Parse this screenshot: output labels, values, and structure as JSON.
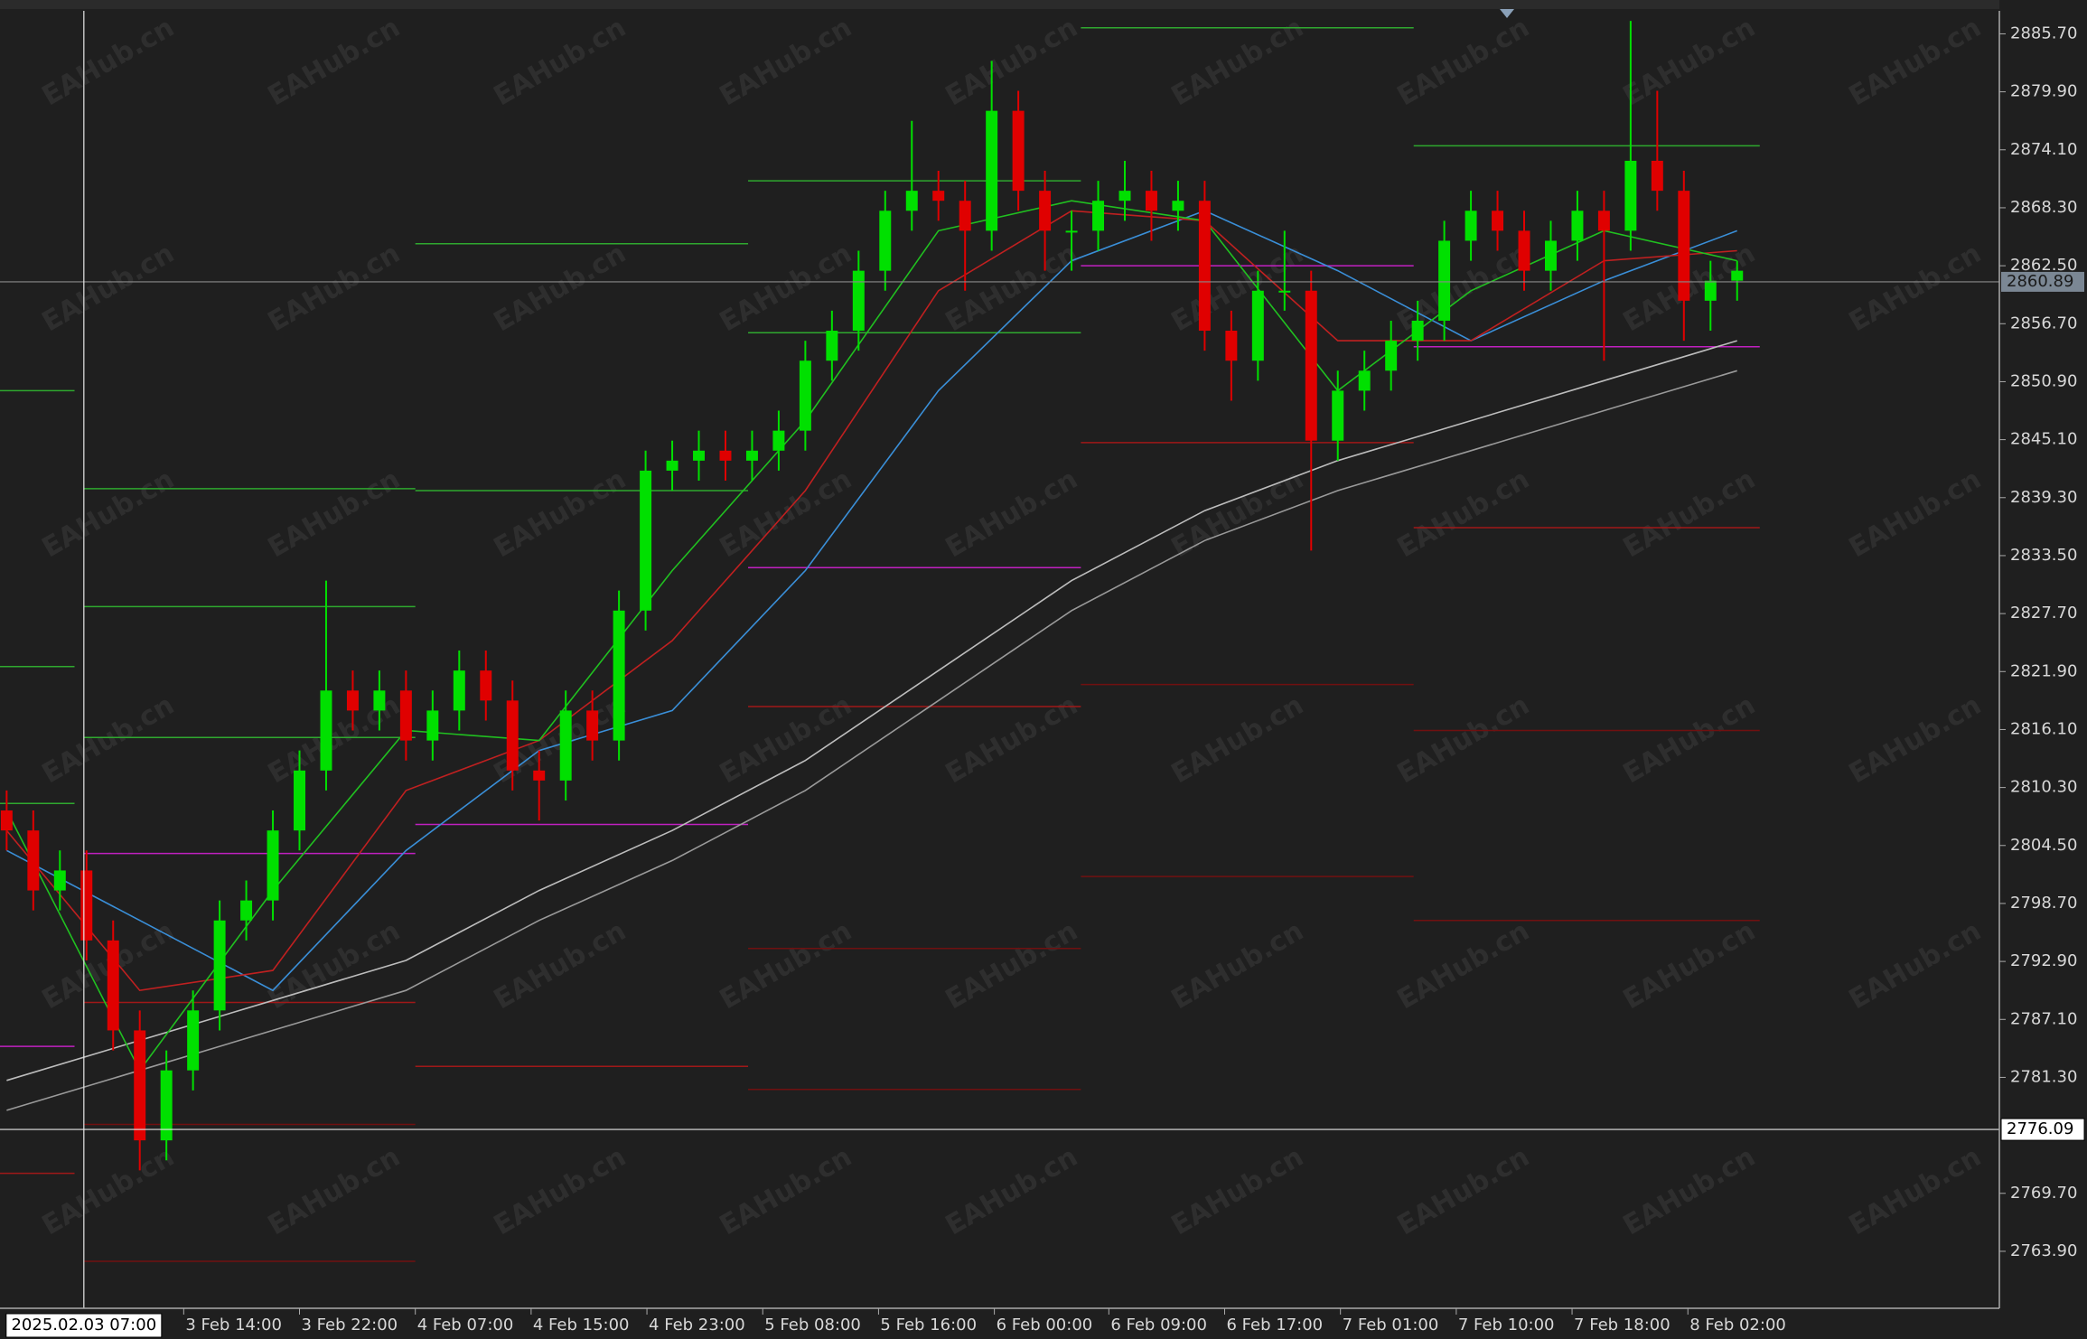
{
  "chart_data": {
    "type": "candlestick",
    "watermark": "EAHub.cn",
    "up_color": "#00e000",
    "down_color": "#e00000",
    "open": [
      2808,
      2806,
      2800,
      2802,
      2795,
      2786,
      2775,
      2782,
      2788,
      2797,
      2799,
      2806,
      2812,
      2820,
      2818,
      2820,
      2815,
      2818,
      2822,
      2819,
      2812,
      2811,
      2818,
      2815,
      2828,
      2842,
      2843,
      2844,
      2843,
      2844,
      2846,
      2853,
      2856,
      2862,
      2868,
      2870,
      2869,
      2866,
      2878,
      2870,
      2866,
      2866,
      2869,
      2870,
      2868,
      2869,
      2856,
      2853,
      2860,
      2860,
      2845,
      2850,
      2852,
      2855,
      2857,
      2865,
      2868,
      2866,
      2862,
      2865,
      2868,
      2866,
      2873,
      2870,
      2859,
      2861
    ],
    "high": [
      2810,
      2808,
      2804,
      2804,
      2797,
      2788,
      2784,
      2790,
      2799,
      2801,
      2808,
      2814,
      2831,
      2822,
      2822,
      2822,
      2820,
      2824,
      2824,
      2821,
      2814,
      2820,
      2820,
      2830,
      2844,
      2845,
      2846,
      2846,
      2846,
      2848,
      2855,
      2858,
      2864,
      2870,
      2877,
      2872,
      2871,
      2883,
      2880,
      2872,
      2868,
      2871,
      2873,
      2872,
      2871,
      2871,
      2858,
      2862,
      2866,
      2862,
      2852,
      2854,
      2857,
      2859,
      2867,
      2870,
      2870,
      2868,
      2867,
      2870,
      2870,
      2887,
      2880,
      2872,
      2863,
      2863
    ],
    "low": [
      2804,
      2798,
      2798,
      2793,
      2784,
      2772,
      2773,
      2780,
      2786,
      2795,
      2797,
      2804,
      2810,
      2816,
      2816,
      2813,
      2813,
      2816,
      2817,
      2810,
      2807,
      2809,
      2813,
      2813,
      2826,
      2840,
      2841,
      2841,
      2841,
      2842,
      2844,
      2851,
      2854,
      2860,
      2866,
      2867,
      2860,
      2864,
      2868,
      2862,
      2862,
      2864,
      2867,
      2865,
      2866,
      2854,
      2849,
      2851,
      2858,
      2834,
      2843,
      2848,
      2850,
      2853,
      2855,
      2863,
      2864,
      2860,
      2860,
      2863,
      2853,
      2864,
      2868,
      2855,
      2856,
      2859
    ],
    "close": [
      2806,
      2800,
      2802,
      2795,
      2786,
      2775,
      2782,
      2788,
      2797,
      2799,
      2806,
      2812,
      2820,
      2818,
      2820,
      2815,
      2818,
      2822,
      2819,
      2812,
      2811,
      2818,
      2815,
      2828,
      2842,
      2843,
      2844,
      2843,
      2844,
      2846,
      2853,
      2856,
      2862,
      2868,
      2870,
      2869,
      2866,
      2878,
      2870,
      2866,
      2866,
      2869,
      2870,
      2868,
      2869,
      2856,
      2853,
      2860,
      2860,
      2845,
      2850,
      2852,
      2855,
      2857,
      2865,
      2868,
      2866,
      2862,
      2865,
      2868,
      2866,
      2873,
      2870,
      2859,
      2861,
      2862
    ],
    "lines": {
      "x": [
        0,
        5,
        10,
        15,
        20,
        25,
        30,
        35,
        40,
        45,
        50,
        55,
        60,
        65
      ],
      "series": [
        {
          "color": "#bdbdbd",
          "values": [
            2781,
            2785,
            2789,
            2793,
            2800,
            2806,
            2813,
            2822,
            2831,
            2838,
            2843,
            2847,
            2851,
            2855
          ]
        },
        {
          "color": "#9a9a9a",
          "values": [
            2778,
            2782,
            2786,
            2790,
            2797,
            2803,
            2810,
            2819,
            2828,
            2835,
            2840,
            2844,
            2848,
            2852
          ]
        },
        {
          "color": "#3a8fd8",
          "values": [
            2804,
            2797,
            2790,
            2804,
            2814,
            2818,
            2832,
            2850,
            2863,
            2868,
            2862,
            2855,
            2861,
            2866
          ]
        },
        {
          "color": "#c02020",
          "values": [
            2806,
            2790,
            2792,
            2810,
            2815,
            2825,
            2840,
            2860,
            2868,
            2867,
            2855,
            2855,
            2863,
            2864
          ]
        },
        {
          "color": "#20c020",
          "values": [
            2808,
            2782,
            2800,
            2816,
            2815,
            2832,
            2847,
            2866,
            2869,
            2867,
            2850,
            2860,
            2866,
            2863
          ]
        }
      ]
    },
    "levels": [
      {
        "start": -0.25,
        "end": 2.55,
        "value": 2850,
        "color": "#2fa82f"
      },
      {
        "start": -0.25,
        "end": 2.55,
        "value": 2822.4,
        "color": "#2fa82f"
      },
      {
        "start": -0.25,
        "end": 2.55,
        "value": 2808.7,
        "color": "#2fa82f"
      },
      {
        "start": -0.25,
        "end": 2.55,
        "value": 2784.4,
        "color": "#c020c0"
      },
      {
        "start": -0.25,
        "end": 2.55,
        "value": 2771.7,
        "color": "#a01818"
      },
      {
        "start": 2.9,
        "end": 15.35,
        "value": 2840.2,
        "color": "#2fa82f"
      },
      {
        "start": 2.9,
        "end": 15.35,
        "value": 2828.4,
        "color": "#2fa82f"
      },
      {
        "start": 2.9,
        "end": 15.35,
        "value": 2815.3,
        "color": "#2fa82f"
      },
      {
        "start": 2.9,
        "end": 15.35,
        "value": 2803.7,
        "color": "#c020c0"
      },
      {
        "start": 2.9,
        "end": 15.35,
        "value": 2788.8,
        "color": "#a01818"
      },
      {
        "start": 2.9,
        "end": 15.35,
        "value": 2776.6,
        "color": "#701010"
      },
      {
        "start": 2.9,
        "end": 15.35,
        "value": 2762.9,
        "color": "#701010"
      },
      {
        "start": 15.35,
        "end": 27.85,
        "value": 2864.7,
        "color": "#2fa82f"
      },
      {
        "start": 15.35,
        "end": 27.85,
        "value": 2840,
        "color": "#2fa82f"
      },
      {
        "start": 15.35,
        "end": 27.85,
        "value": 2806.6,
        "color": "#c020c0"
      },
      {
        "start": 15.35,
        "end": 27.85,
        "value": 2782.4,
        "color": "#a01818"
      },
      {
        "start": 27.85,
        "end": 40.35,
        "value": 2871,
        "color": "#2fa82f"
      },
      {
        "start": 27.85,
        "end": 40.35,
        "value": 2855.8,
        "color": "#2fa82f"
      },
      {
        "start": 27.85,
        "end": 40.35,
        "value": 2832.3,
        "color": "#c020c0"
      },
      {
        "start": 27.85,
        "end": 40.35,
        "value": 2818.4,
        "color": "#a01818"
      },
      {
        "start": 27.85,
        "end": 40.35,
        "value": 2794.2,
        "color": "#701010"
      },
      {
        "start": 27.85,
        "end": 40.35,
        "value": 2780.1,
        "color": "#701010"
      },
      {
        "start": 40.35,
        "end": 52.85,
        "value": 2886.3,
        "color": "#2fa82f"
      },
      {
        "start": 40.35,
        "end": 52.85,
        "value": 2862.5,
        "color": "#c020c0"
      },
      {
        "start": 40.35,
        "end": 52.85,
        "value": 2844.8,
        "color": "#a01818"
      },
      {
        "start": 40.35,
        "end": 52.85,
        "value": 2820.6,
        "color": "#701010"
      },
      {
        "start": 40.35,
        "end": 52.85,
        "value": 2801.4,
        "color": "#701010"
      },
      {
        "start": 52.85,
        "end": 65.85,
        "value": 2874.5,
        "color": "#2fa82f"
      },
      {
        "start": 52.85,
        "end": 65.85,
        "value": 2854.4,
        "color": "#c020c0"
      },
      {
        "start": 52.85,
        "end": 65.85,
        "value": 2836.3,
        "color": "#a01818"
      },
      {
        "start": 52.85,
        "end": 65.85,
        "value": 2816,
        "color": "#701010"
      },
      {
        "start": 52.85,
        "end": 65.85,
        "value": 2797,
        "color": "#701010"
      }
    ],
    "xlim": [
      -0.25,
      74.85
    ],
    "ylim": [
      2758.2,
      2888.0
    ],
    "xticks": [
      {
        "value": 6.65,
        "label": "3 Feb 14:00"
      },
      {
        "value": 11,
        "label": "3 Feb 22:00"
      },
      {
        "value": 15.35,
        "label": "4 Feb 07:00"
      },
      {
        "value": 19.7,
        "label": "4 Feb 15:00"
      },
      {
        "value": 24.05,
        "label": "4 Feb 23:00"
      },
      {
        "value": 28.4,
        "label": "5 Feb 08:00"
      },
      {
        "value": 32.75,
        "label": "5 Feb 16:00"
      },
      {
        "value": 37.1,
        "label": "6 Feb 00:00"
      },
      {
        "value": 41.4,
        "label": "6 Feb 09:00"
      },
      {
        "value": 45.75,
        "label": "6 Feb 17:00"
      },
      {
        "value": 50.1,
        "label": "7 Feb 01:00"
      },
      {
        "value": 54.45,
        "label": "7 Feb 10:00"
      },
      {
        "value": 58.8,
        "label": "7 Feb 18:00"
      },
      {
        "value": 63.15,
        "label": "8 Feb 02:00"
      }
    ],
    "yticks": [
      {
        "value": 2885.7,
        "label": "2885.70"
      },
      {
        "value": 2879.9,
        "label": "2879.90"
      },
      {
        "value": 2874.1,
        "label": "2874.10"
      },
      {
        "value": 2868.3,
        "label": "2868.30"
      },
      {
        "value": 2862.5,
        "label": "2862.50"
      },
      {
        "value": 2856.7,
        "label": "2856.70"
      },
      {
        "value": 2850.9,
        "label": "2850.90"
      },
      {
        "value": 2845.1,
        "label": "2845.10"
      },
      {
        "value": 2839.3,
        "label": "2839.30"
      },
      {
        "value": 2833.5,
        "label": "2833.50"
      },
      {
        "value": 2827.7,
        "label": "2827.70"
      },
      {
        "value": 2821.9,
        "label": "2821.90"
      },
      {
        "value": 2816.1,
        "label": "2816.10"
      },
      {
        "value": 2810.3,
        "label": "2810.30"
      },
      {
        "value": 2804.5,
        "label": "2804.50"
      },
      {
        "value": 2798.7,
        "label": "2798.70"
      },
      {
        "value": 2792.9,
        "label": "2792.90"
      },
      {
        "value": 2787.1,
        "label": "2787.10"
      },
      {
        "value": 2781.3,
        "label": "2781.30"
      },
      {
        "value": 2769.7,
        "label": "2769.70"
      },
      {
        "value": 2763.9,
        "label": "2763.90"
      }
    ],
    "current_price": {
      "value": 2860.89,
      "label": "2860.89"
    },
    "crosshair": {
      "price": {
        "value": 2776.09,
        "label": "2776.09"
      },
      "time": {
        "value": 2.9,
        "label": "2025.02.03 07:00"
      }
    }
  }
}
